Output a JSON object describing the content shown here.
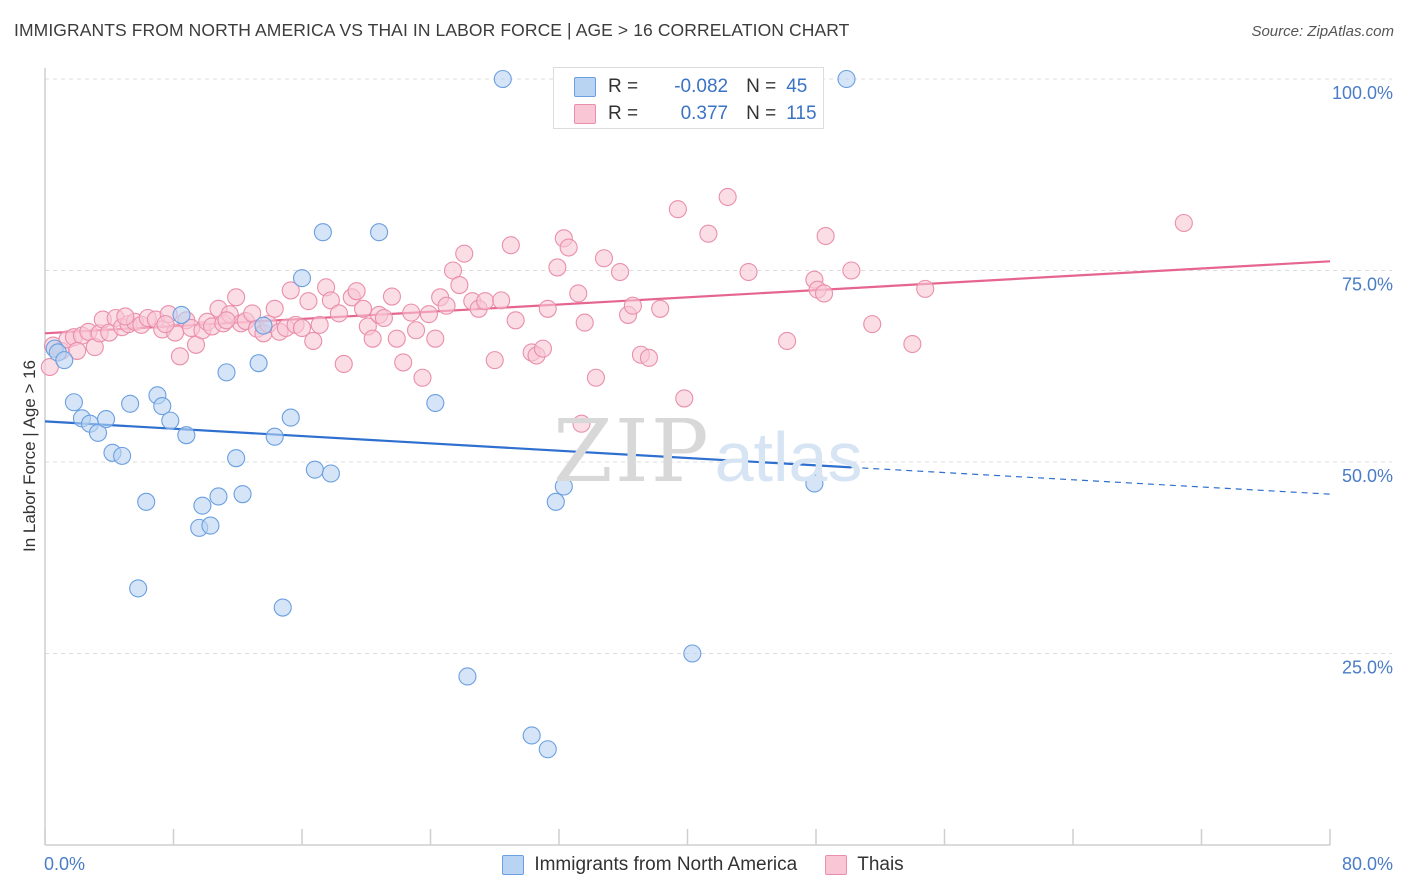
{
  "title": "IMMIGRANTS FROM NORTH AMERICA VS THAI IN LABOR FORCE | AGE > 16 CORRELATION CHART",
  "source": "Source: ZipAtlas.com",
  "watermark": {
    "zip": "ZIP",
    "atlas": "atlas"
  },
  "legend": {
    "r_label": "R =",
    "n_label": "N =",
    "rows": [
      {
        "r": "-0.082",
        "n": "45"
      },
      {
        "r": "0.377",
        "n": "115"
      }
    ]
  },
  "colors": {
    "blue_fill": "#b9d3f2",
    "blue_stroke": "#6b9fe0",
    "blue_line": "#2e6fcf",
    "pink_fill": "#f8c6d5",
    "pink_stroke": "#ea8fab",
    "pink_line": "#e5658f",
    "grid": "#dcdcdc",
    "tick_label": "#4a7cc7"
  },
  "chart_data": {
    "type": "scatter",
    "title": "IMMIGRANTS FROM NORTH AMERICA VS THAI IN LABOR FORCE | AGE > 16 CORRELATION CHART",
    "xlabel": "",
    "ylabel": "In Labor Force | Age > 16",
    "xlim": [
      0,
      80
    ],
    "ylim": [
      0,
      102
    ],
    "x_tick_labels": [
      "0.0%",
      "80.0%"
    ],
    "y_ticks": [
      25,
      50,
      75,
      100
    ],
    "y_tick_labels": [
      "25.0%",
      "50.0%",
      "75.0%",
      "100.0%"
    ],
    "grid": "horizontal dashed",
    "legend_position": "bottom",
    "series": [
      {
        "name": "Immigrants from North America",
        "r": -0.082,
        "n": 45,
        "trend": {
          "x0": 0,
          "y0": 55.3,
          "x1": 50.2,
          "y1": 49.3,
          "dashed_to_x": 80,
          "dashed_to_y": 45.8
        },
        "points": [
          [
            0.6,
            64.8
          ],
          [
            0.8,
            64.3
          ],
          [
            1.2,
            63.3
          ],
          [
            1.8,
            57.8
          ],
          [
            2.3,
            55.7
          ],
          [
            2.8,
            55.0
          ],
          [
            3.3,
            53.8
          ],
          [
            3.8,
            55.6
          ],
          [
            4.2,
            51.2
          ],
          [
            4.8,
            50.8
          ],
          [
            5.3,
            57.6
          ],
          [
            6.3,
            44.8
          ],
          [
            7.0,
            58.7
          ],
          [
            7.3,
            57.3
          ],
          [
            7.8,
            55.4
          ],
          [
            8.5,
            69.2
          ],
          [
            8.8,
            53.5
          ],
          [
            9.6,
            41.4
          ],
          [
            9.8,
            44.3
          ],
          [
            10.3,
            41.7
          ],
          [
            10.8,
            45.5
          ],
          [
            11.3,
            61.7
          ],
          [
            11.9,
            50.5
          ],
          [
            12.3,
            45.8
          ],
          [
            13.3,
            62.9
          ],
          [
            13.6,
            67.8
          ],
          [
            14.3,
            53.3
          ],
          [
            14.8,
            31.0
          ],
          [
            15.3,
            55.8
          ],
          [
            16.0,
            74.0
          ],
          [
            16.8,
            49.0
          ],
          [
            17.3,
            80.0
          ],
          [
            17.8,
            48.5
          ],
          [
            20.8,
            80.0
          ],
          [
            24.3,
            57.7
          ],
          [
            26.3,
            22.0
          ],
          [
            28.5,
            100.0
          ],
          [
            30.3,
            14.3
          ],
          [
            31.3,
            12.5
          ],
          [
            31.8,
            44.8
          ],
          [
            32.3,
            46.8
          ],
          [
            40.3,
            25.0
          ],
          [
            47.9,
            47.2
          ],
          [
            49.9,
            100.0
          ],
          [
            5.8,
            33.5
          ]
        ]
      },
      {
        "name": "Thais",
        "r": 0.377,
        "n": 115,
        "trend": {
          "x0": 0,
          "y0": 66.8,
          "x1": 80,
          "y1": 76.2
        },
        "points": [
          [
            0.5,
            65.2
          ],
          [
            1.0,
            64.5
          ],
          [
            1.4,
            66.0
          ],
          [
            1.8,
            66.3
          ],
          [
            2.3,
            66.5
          ],
          [
            2.7,
            67.0
          ],
          [
            3.1,
            65.0
          ],
          [
            3.4,
            66.8
          ],
          [
            3.6,
            68.6
          ],
          [
            4.0,
            66.9
          ],
          [
            4.4,
            68.8
          ],
          [
            4.8,
            67.6
          ],
          [
            5.2,
            68.0
          ],
          [
            5.6,
            68.3
          ],
          [
            6.0,
            67.9
          ],
          [
            6.4,
            68.8
          ],
          [
            6.9,
            68.6
          ],
          [
            7.3,
            67.3
          ],
          [
            7.7,
            69.3
          ],
          [
            8.1,
            66.9
          ],
          [
            8.4,
            63.8
          ],
          [
            8.8,
            68.5
          ],
          [
            9.1,
            67.5
          ],
          [
            9.4,
            65.3
          ],
          [
            9.8,
            67.2
          ],
          [
            10.1,
            68.3
          ],
          [
            10.4,
            67.7
          ],
          [
            10.8,
            70.0
          ],
          [
            11.1,
            68.1
          ],
          [
            11.5,
            69.3
          ],
          [
            11.9,
            71.5
          ],
          [
            12.2,
            68.1
          ],
          [
            12.5,
            68.4
          ],
          [
            12.9,
            69.4
          ],
          [
            13.2,
            67.4
          ],
          [
            13.6,
            66.8
          ],
          [
            13.9,
            68.0
          ],
          [
            14.3,
            70.0
          ],
          [
            14.6,
            67.0
          ],
          [
            15.0,
            67.5
          ],
          [
            15.3,
            72.4
          ],
          [
            15.6,
            67.9
          ],
          [
            16.0,
            67.5
          ],
          [
            16.4,
            71.0
          ],
          [
            16.7,
            65.8
          ],
          [
            17.1,
            67.9
          ],
          [
            17.5,
            72.8
          ],
          [
            17.8,
            71.1
          ],
          [
            18.3,
            69.4
          ],
          [
            18.6,
            62.8
          ],
          [
            19.1,
            71.5
          ],
          [
            19.4,
            72.3
          ],
          [
            19.8,
            70.0
          ],
          [
            20.1,
            67.7
          ],
          [
            20.4,
            66.1
          ],
          [
            20.8,
            69.2
          ],
          [
            21.1,
            68.8
          ],
          [
            21.6,
            71.6
          ],
          [
            21.9,
            66.1
          ],
          [
            22.3,
            63.0
          ],
          [
            22.8,
            69.5
          ],
          [
            23.1,
            67.2
          ],
          [
            23.5,
            61.0
          ],
          [
            23.9,
            69.3
          ],
          [
            24.3,
            66.1
          ],
          [
            24.6,
            71.5
          ],
          [
            25.0,
            70.4
          ],
          [
            25.4,
            75.0
          ],
          [
            25.8,
            73.1
          ],
          [
            26.1,
            77.2
          ],
          [
            26.6,
            71.0
          ],
          [
            27.0,
            70.0
          ],
          [
            27.4,
            71.0
          ],
          [
            28.0,
            63.3
          ],
          [
            28.4,
            71.1
          ],
          [
            29.0,
            78.3
          ],
          [
            29.3,
            68.5
          ],
          [
            30.3,
            64.3
          ],
          [
            30.6,
            63.9
          ],
          [
            31.0,
            64.8
          ],
          [
            31.3,
            70.0
          ],
          [
            31.9,
            75.4
          ],
          [
            32.3,
            79.2
          ],
          [
            32.6,
            78.0
          ],
          [
            33.2,
            72.0
          ],
          [
            33.6,
            68.2
          ],
          [
            34.3,
            61.0
          ],
          [
            34.8,
            76.6
          ],
          [
            35.8,
            74.8
          ],
          [
            36.3,
            69.2
          ],
          [
            36.6,
            70.4
          ],
          [
            37.1,
            64.0
          ],
          [
            37.6,
            63.6
          ],
          [
            38.3,
            70.0
          ],
          [
            39.4,
            83.0
          ],
          [
            39.8,
            58.3
          ],
          [
            41.3,
            79.8
          ],
          [
            42.5,
            84.6
          ],
          [
            43.8,
            74.8
          ],
          [
            46.2,
            65.8
          ],
          [
            47.9,
            73.8
          ],
          [
            48.1,
            72.5
          ],
          [
            48.5,
            72.0
          ],
          [
            48.6,
            79.5
          ],
          [
            50.2,
            75.0
          ],
          [
            51.5,
            68.0
          ],
          [
            54.0,
            65.4
          ],
          [
            54.8,
            72.6
          ],
          [
            70.9,
            81.2
          ],
          [
            33.4,
            55.0
          ],
          [
            0.3,
            62.4
          ],
          [
            2.0,
            64.5
          ],
          [
            5.0,
            69.0
          ],
          [
            7.5,
            68.0
          ],
          [
            11.3,
            68.5
          ]
        ]
      }
    ]
  }
}
